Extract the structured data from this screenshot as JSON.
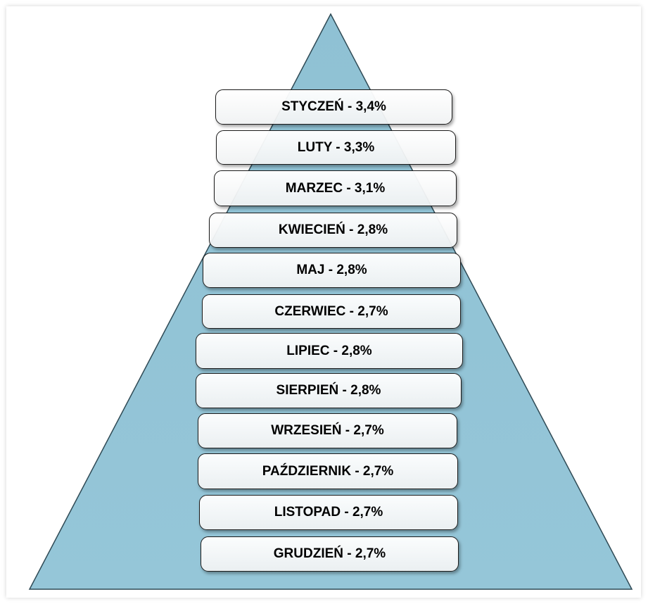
{
  "colors": {
    "pyramid_fill": "#95c6d8",
    "pyramid_outline": "#2f4a55",
    "box_border": "#1b1b1b",
    "text": "#000000"
  },
  "levels": [
    {
      "month": "STYCZEŃ",
      "value": 3.4,
      "label": "STYCZEŃ - 3,4%"
    },
    {
      "month": "LUTY",
      "value": 3.3,
      "label": "LUTY - 3,3%"
    },
    {
      "month": "MARZEC",
      "value": 3.1,
      "label": "MARZEC - 3,1%"
    },
    {
      "month": "KWIECIEŃ",
      "value": 2.8,
      "label": "KWIECIEŃ - 2,8%"
    },
    {
      "month": "MAJ",
      "value": 2.8,
      "label": "MAJ - 2,8%"
    },
    {
      "month": "CZERWIEC",
      "value": 2.7,
      "label": "CZERWIEC - 2,7%"
    },
    {
      "month": "LIPIEC",
      "value": 2.8,
      "label": "LIPIEC - 2,8%"
    },
    {
      "month": "SIERPIEŃ",
      "value": 2.8,
      "label": "SIERPIEŃ - 2,8%"
    },
    {
      "month": "WRZESIEŃ",
      "value": 2.7,
      "label": "WRZESIEŃ - 2,7%"
    },
    {
      "month": "PAŹDZIERNIK",
      "value": 2.7,
      "label": "PAŹDZIERNIK - 2,7%"
    },
    {
      "month": "LISTOPAD",
      "value": 2.7,
      "label": "LISTOPAD - 2,7%"
    },
    {
      "month": "GRUDZIEŃ",
      "value": 2.7,
      "label": "GRUDZIEŃ - 2,7%"
    }
  ]
}
